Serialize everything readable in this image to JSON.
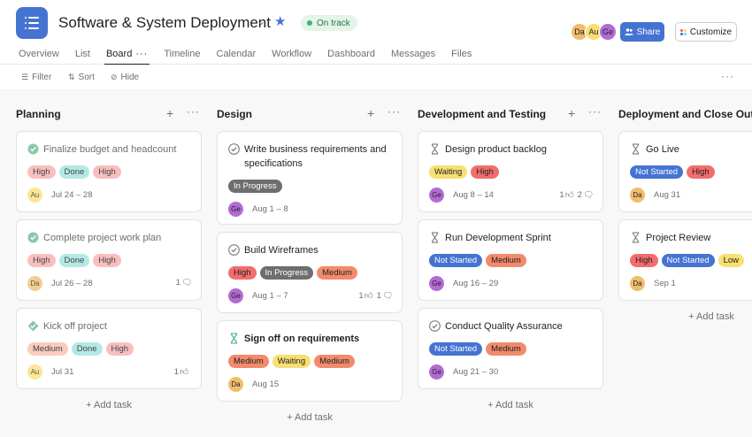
{
  "project": {
    "title": "Software & System Deployment",
    "status": "On track"
  },
  "header": {
    "share_label": "Share",
    "customize_label": "Customize",
    "members": [
      {
        "initials": "Da",
        "color": "#f1bd6c"
      },
      {
        "initials": "Au",
        "color": "#f8df72"
      },
      {
        "initials": "Ge",
        "color": "#b36bd4"
      }
    ]
  },
  "tabs": [
    {
      "label": "Overview"
    },
    {
      "label": "List"
    },
    {
      "label": "Board",
      "active": true
    },
    {
      "label": "Timeline"
    },
    {
      "label": "Calendar"
    },
    {
      "label": "Workflow"
    },
    {
      "label": "Dashboard"
    },
    {
      "label": "Messages"
    },
    {
      "label": "Files"
    }
  ],
  "toolbar": {
    "filter_label": "Filter",
    "sort_label": "Sort",
    "hide_label": "Hide"
  },
  "add_task_label": "+ Add task",
  "tag_colors": {
    "High": "#f8a8a8",
    "Done": "#81dbd4",
    "Medium": "#f8a8a8",
    "Waiting": "#f8df72",
    "Not Started": "#4573d2",
    "In Progress": "#6d6e6f",
    "Low": "#f8df72"
  },
  "columns": [
    {
      "title": "Planning",
      "cards": [
        {
          "title": "Finalize budget and headcount",
          "icon": "check-circle-filled",
          "done": true,
          "tags": [
            "High",
            "Done",
            "High"
          ],
          "assignee": "Au",
          "date": "Jul 24 – 28",
          "likes": "",
          "comments": ""
        },
        {
          "title": "Complete project work plan",
          "icon": "check-circle-filled",
          "done": true,
          "tags": [
            "High",
            "Done",
            "High"
          ],
          "assignee": "Da",
          "date": "Jul 26 – 28",
          "likes": "",
          "comments": "1"
        },
        {
          "title": "Kick off project",
          "icon": "diamond-filled",
          "done": true,
          "tags": [
            "Medium",
            "Done",
            "High"
          ],
          "assignee": "Au",
          "date": "Jul 31",
          "likes": "1",
          "comments": ""
        }
      ]
    },
    {
      "title": "Design",
      "cards": [
        {
          "title": "Write business requirements and specifications",
          "icon": "check-circle-outline",
          "done": false,
          "tags": [
            "In Progress"
          ],
          "assignee": "Ge",
          "date": "Aug 1 – 8",
          "likes": "",
          "comments": ""
        },
        {
          "title": "Build Wireframes",
          "icon": "check-circle-outline",
          "done": false,
          "tags": [
            "High",
            "In Progress",
            "Medium"
          ],
          "assignee": "Ge",
          "date": "Aug 1 – 7",
          "likes": "1",
          "comments": "1"
        },
        {
          "title": "Sign off on requirements",
          "icon": "hourglass-green",
          "done": false,
          "bold": true,
          "tags": [
            "Medium",
            "Waiting",
            "Medium"
          ],
          "assignee": "Da",
          "date": "Aug 15",
          "likes": "",
          "comments": ""
        }
      ]
    },
    {
      "title": "Development and Testing",
      "cards": [
        {
          "title": "Design product backlog",
          "icon": "hourglass",
          "done": false,
          "tags": [
            "Waiting",
            "High"
          ],
          "assignee": "Ge",
          "date": "Aug 8 – 14",
          "likes": "1",
          "comments": "2"
        },
        {
          "title": "Run Development Sprint",
          "icon": "hourglass",
          "done": false,
          "tags": [
            "Not Started",
            "Medium"
          ],
          "assignee": "Ge",
          "date": "Aug 16 – 29",
          "likes": "",
          "comments": ""
        },
        {
          "title": "Conduct Quality Assurance",
          "icon": "check-circle-outline",
          "done": false,
          "tags": [
            "Not Started",
            "Medium"
          ],
          "assignee": "Ge",
          "date": "Aug 21 – 30",
          "likes": "",
          "comments": ""
        }
      ]
    },
    {
      "title": "Deployment and Close Out",
      "cards": [
        {
          "title": "Go Live",
          "icon": "hourglass",
          "done": false,
          "tags": [
            "Not Started",
            "High"
          ],
          "assignee": "Da",
          "date": "Aug 31",
          "likes": "",
          "comments": ""
        },
        {
          "title": "Project Review",
          "icon": "hourglass",
          "done": false,
          "tags": [
            "High",
            "Not Started",
            "Low"
          ],
          "assignee": "Da",
          "date": "Sep 1",
          "likes": "",
          "comments": ""
        }
      ]
    }
  ]
}
